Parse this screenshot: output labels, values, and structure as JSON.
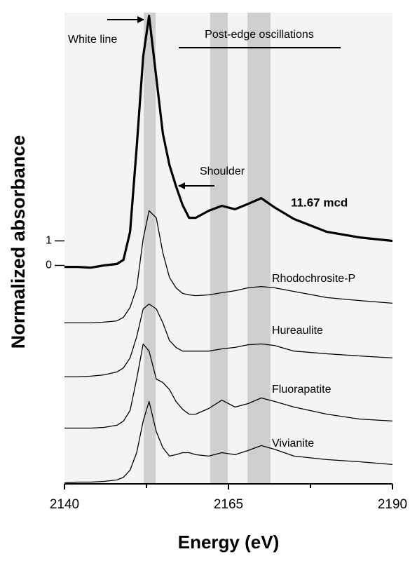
{
  "chart_data": {
    "type": "line",
    "xlabel": "Energy (eV)",
    "ylabel": "Normalized absorbance",
    "xlim": [
      2140,
      2190
    ],
    "xticks": [
      2140,
      2165,
      2190
    ],
    "xminorticks": [
      2152.5,
      2177.5
    ],
    "ylim": [
      -8.9,
      10.3
    ],
    "yticks": [
      0,
      1
    ],
    "bands": [
      [
        2152.1,
        2153.9
      ],
      [
        2162.2,
        2164.9
      ],
      [
        2167.9,
        2171.4
      ]
    ],
    "band_color": "#cfcfcf",
    "annotations": [
      "White line",
      "Post-edge oscillations",
      "Shoulder"
    ],
    "x": [
      2140,
      2142,
      2144,
      2146,
      2148,
      2149,
      2150,
      2151,
      2152,
      2152.9,
      2154,
      2155,
      2156,
      2157,
      2158,
      2159,
      2160,
      2162,
      2164,
      2166,
      2168,
      2170,
      2172,
      2175,
      2180,
      2185,
      2190
    ],
    "series": [
      {
        "name": "11.67 mcd",
        "color": "#000000",
        "linewidth": 3.2,
        "values": [
          -0.06,
          -0.06,
          -0.09,
          0,
          0.06,
          0.23,
          1.37,
          4.8,
          8.51,
          10.17,
          7.66,
          5.37,
          4.09,
          3.23,
          2.46,
          1.94,
          1.94,
          2.23,
          2.43,
          2.29,
          2.51,
          2.74,
          2.37,
          1.89,
          1.37,
          1.14,
          1.0
        ]
      },
      {
        "name": "Rhodochrosite-P",
        "color": "#000000",
        "linewidth": 1.3,
        "values": [
          -2.34,
          -2.34,
          -2.34,
          -2.31,
          -2.26,
          -2.11,
          -1.71,
          -0.91,
          1.09,
          2.23,
          1.94,
          0.51,
          -0.49,
          -0.91,
          -1.14,
          -1.2,
          -1.23,
          -1.2,
          -1.11,
          -1.03,
          -0.91,
          -0.86,
          -0.91,
          -1.06,
          -1.31,
          -1.43,
          -1.54
        ]
      },
      {
        "name": "Hureaulite",
        "color": "#000000",
        "linewidth": 1.3,
        "values": [
          -4.54,
          -4.54,
          -4.51,
          -4.46,
          -4.34,
          -4.17,
          -3.77,
          -2.91,
          -1.77,
          -1.57,
          -1.77,
          -2.34,
          -3.06,
          -3.34,
          -3.49,
          -3.49,
          -3.49,
          -3.49,
          -3.4,
          -3.34,
          -3.23,
          -3.2,
          -3.26,
          -3.49,
          -3.6,
          -3.69,
          -3.77
        ]
      },
      {
        "name": "Fluorapatite",
        "color": "#000000",
        "linewidth": 1.3,
        "values": [
          -6.63,
          -6.63,
          -6.63,
          -6.6,
          -6.51,
          -6.34,
          -5.91,
          -4.63,
          -3.2,
          -3.49,
          -4.63,
          -4.77,
          -5.06,
          -5.54,
          -5.86,
          -6.06,
          -6.06,
          -5.83,
          -5.49,
          -5.77,
          -5.63,
          -5.4,
          -5.54,
          -5.77,
          -6.06,
          -6.26,
          -6.34
        ]
      },
      {
        "name": "Vivianite",
        "color": "#000000",
        "linewidth": 1.3,
        "values": [
          -8.86,
          -8.83,
          -8.83,
          -8.8,
          -8.74,
          -8.63,
          -8.34,
          -7.63,
          -6.34,
          -5.54,
          -6.77,
          -7.43,
          -7.77,
          -7.71,
          -7.63,
          -7.63,
          -7.71,
          -7.77,
          -7.63,
          -7.71,
          -7.54,
          -7.34,
          -7.49,
          -7.77,
          -7.91,
          -8.0,
          -8.11
        ]
      }
    ]
  }
}
